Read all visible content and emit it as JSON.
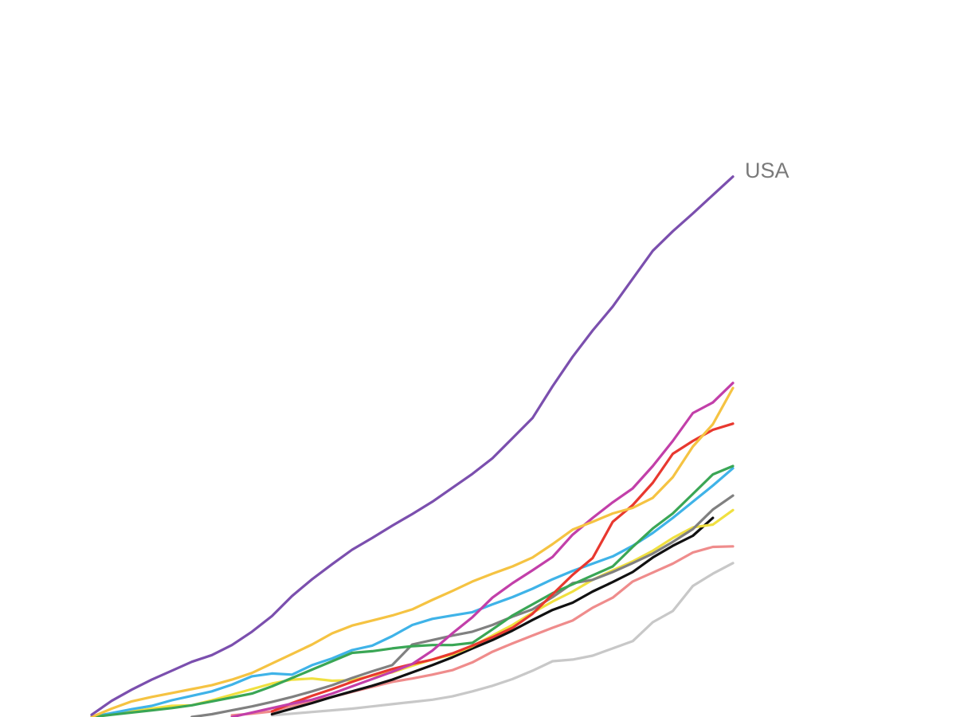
{
  "chart_data": {
    "type": "line",
    "x": [
      0,
      1,
      2,
      3,
      4,
      5,
      6,
      7,
      8,
      9,
      10,
      11,
      12,
      13,
      14,
      15,
      16,
      17,
      18,
      19,
      20,
      21,
      22,
      23,
      24,
      25,
      26,
      27,
      28,
      29,
      30,
      31,
      32
    ],
    "xlim": [
      0,
      32
    ],
    "ylim": [
      0,
      100
    ],
    "series": [
      {
        "name": "USA",
        "color": "#7b4fae",
        "values": [
          0.4,
          2.9,
          4.9,
          6.7,
          8.3,
          9.9,
          11.1,
          12.9,
          15.3,
          18.1,
          21.7,
          24.7,
          27.4,
          30,
          32.1,
          34.3,
          36.4,
          38.6,
          41.1,
          43.6,
          46.4,
          50,
          53.6,
          59.3,
          64.6,
          69.3,
          73.6,
          78.6,
          83.6,
          87.1,
          90.3,
          93.6,
          96.9
        ]
      },
      {
        "color": "#f5c342",
        "values": [
          0,
          1.5,
          2.8,
          3.6,
          4.3,
          5,
          5.7,
          6.7,
          7.9,
          9.6,
          11.3,
          13,
          15,
          16.4,
          17.3,
          18.2,
          19.3,
          21,
          22.6,
          24.3,
          25.7,
          27,
          28.6,
          31,
          33.6,
          35,
          36.5,
          37.5,
          39.3,
          43,
          48.5,
          52.5,
          59
        ]
      },
      {
        "color": "#c23fa9",
        "values": [
          null,
          null,
          null,
          null,
          null,
          null,
          null,
          0,
          0.8,
          1.6,
          2.4,
          3.1,
          4.2,
          5.5,
          6.8,
          8.1,
          9.5,
          11.9,
          15,
          17.9,
          21.4,
          24,
          26.3,
          28.7,
          32.7,
          35.7,
          38.5,
          41,
          45,
          49.5,
          54.5,
          56.4,
          59.9
        ]
      },
      {
        "color": "#e8382f",
        "values": [
          null,
          null,
          null,
          null,
          null,
          null,
          null,
          null,
          null,
          1,
          2.5,
          3.8,
          5,
          6.3,
          7.5,
          8.6,
          9.5,
          10.3,
          11.4,
          12.8,
          14.3,
          16,
          18.5,
          22,
          25.5,
          28.5,
          35,
          38,
          42,
          47.2,
          49.5,
          51.5,
          52.6
        ]
      },
      {
        "color": "#3aa655",
        "values": [
          0,
          0.4,
          0.8,
          1.2,
          1.6,
          2.1,
          2.8,
          3.5,
          4.2,
          5.5,
          7,
          8.5,
          10,
          11.5,
          11.8,
          12.3,
          12.7,
          12.9,
          12.9,
          13.3,
          15.7,
          18.2,
          20.2,
          22.2,
          23.8,
          25.4,
          27,
          30.5,
          33.8,
          36.5,
          40,
          43.5,
          45
        ]
      },
      {
        "color": "#3fb3e8",
        "values": [
          0,
          0.7,
          1.4,
          2,
          3,
          3.8,
          4.6,
          5.8,
          7.3,
          7.8,
          7.6,
          9.3,
          10.5,
          12,
          12.8,
          14.5,
          16.5,
          17.6,
          18.2,
          18.8,
          20.2,
          21.5,
          23,
          24.7,
          26.2,
          27.5,
          28.8,
          30.7,
          33,
          35.7,
          38.6,
          41.5,
          44.6
        ]
      },
      {
        "color": "#808080",
        "values": [
          null,
          null,
          null,
          null,
          null,
          0,
          0.5,
          1.2,
          1.9,
          2.7,
          3.6,
          4.6,
          5.7,
          7,
          8.2,
          9.3,
          13,
          13.8,
          14.6,
          15.3,
          16.5,
          18,
          19.3,
          21.5,
          24,
          24.6,
          26,
          27.6,
          29.3,
          31.4,
          33.7,
          37.2,
          39.7
        ]
      },
      {
        "color": "#f0e040",
        "values": [
          0,
          0.5,
          1,
          1.5,
          2,
          2.1,
          3,
          4,
          5,
          6,
          6.7,
          6.9,
          6.5,
          6.6,
          7.4,
          8,
          9.2,
          10.3,
          11.2,
          12.7,
          14.6,
          16.5,
          18.7,
          20.7,
          22.5,
          24.6,
          26.3,
          27.9,
          29.8,
          32.1,
          34,
          34.5,
          37.1
        ]
      },
      {
        "color": "#111111",
        "values": [
          null,
          null,
          null,
          null,
          null,
          null,
          null,
          null,
          null,
          0.5,
          1.5,
          2.5,
          3.6,
          4.6,
          5.6,
          6.7,
          8,
          9.3,
          10.7,
          12.3,
          13.8,
          15.5,
          17.4,
          19.2,
          20.5,
          22.5,
          24.2,
          26,
          28.6,
          30.7,
          32.5,
          35.7,
          null
        ]
      },
      {
        "color": "#ef8c8c",
        "values": [
          null,
          null,
          null,
          null,
          null,
          null,
          null,
          0.3,
          0.6,
          1,
          2,
          2.8,
          3.6,
          4.5,
          5.4,
          6.3,
          6.9,
          7.6,
          8.4,
          9.8,
          11.7,
          13.2,
          14.6,
          16,
          17.3,
          19.6,
          21.4,
          24.3,
          25.9,
          27.5,
          29.5,
          30.5,
          30.6
        ]
      },
      {
        "color": "#c8c8c8",
        "values": [
          null,
          null,
          null,
          null,
          null,
          null,
          null,
          null,
          null,
          0.3,
          0.6,
          0.9,
          1.2,
          1.5,
          1.9,
          2.3,
          2.7,
          3.1,
          3.7,
          4.6,
          5.6,
          6.8,
          8.3,
          10,
          10.3,
          11,
          12.3,
          13.6,
          17,
          19,
          23.5,
          25.7,
          27.6
        ]
      }
    ]
  }
}
